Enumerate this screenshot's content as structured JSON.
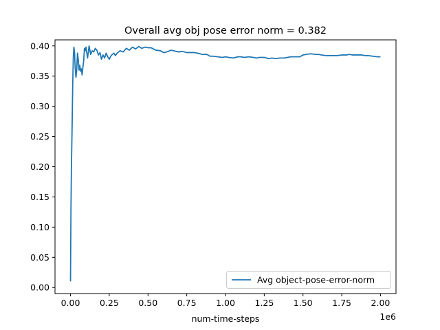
{
  "chart_data": {
    "type": "line",
    "title": "Overall avg obj pose error norm = 0.382",
    "xlabel": "num-time-steps",
    "ylabel": "",
    "x_offset_label": "1e6",
    "xlim": [
      -0.1,
      2.1
    ],
    "ylim": [
      -0.01,
      0.41
    ],
    "x_ticks": [
      0.0,
      0.25,
      0.5,
      0.75,
      1.0,
      1.25,
      1.5,
      1.75,
      2.0
    ],
    "x_tick_labels": [
      "0.00",
      "0.25",
      "0.50",
      "0.75",
      "1.00",
      "1.25",
      "1.50",
      "1.75",
      "2.00"
    ],
    "y_ticks": [
      0.0,
      0.05,
      0.1,
      0.15,
      0.2,
      0.25,
      0.3,
      0.35,
      0.4
    ],
    "y_tick_labels": [
      "0.00",
      "0.05",
      "0.10",
      "0.15",
      "0.20",
      "0.25",
      "0.30",
      "0.35",
      "0.40"
    ],
    "grid": false,
    "legend_position": "lower-right",
    "series": [
      {
        "name": "Avg object-pose-error-norm",
        "color": "#1f77b4",
        "x": [
          0.0,
          0.003,
          0.006,
          0.01,
          0.014,
          0.018,
          0.022,
          0.026,
          0.03,
          0.035,
          0.04,
          0.045,
          0.05,
          0.055,
          0.06,
          0.065,
          0.07,
          0.075,
          0.08,
          0.085,
          0.09,
          0.095,
          0.1,
          0.105,
          0.11,
          0.12,
          0.13,
          0.14,
          0.15,
          0.16,
          0.17,
          0.18,
          0.19,
          0.2,
          0.21,
          0.22,
          0.23,
          0.24,
          0.25,
          0.26,
          0.27,
          0.28,
          0.29,
          0.3,
          0.32,
          0.34,
          0.36,
          0.38,
          0.4,
          0.42,
          0.44,
          0.46,
          0.48,
          0.5,
          0.52,
          0.55,
          0.58,
          0.6,
          0.62,
          0.65,
          0.68,
          0.7,
          0.72,
          0.75,
          0.78,
          0.8,
          0.82,
          0.85,
          0.88,
          0.9,
          0.92,
          0.95,
          0.98,
          1.0,
          1.02,
          1.05,
          1.08,
          1.1,
          1.12,
          1.15,
          1.18,
          1.2,
          1.22,
          1.25,
          1.28,
          1.3,
          1.32,
          1.35,
          1.38,
          1.4,
          1.42,
          1.45,
          1.48,
          1.5,
          1.52,
          1.55,
          1.58,
          1.6,
          1.62,
          1.65,
          1.68,
          1.7,
          1.72,
          1.75,
          1.78,
          1.8,
          1.82,
          1.85,
          1.88,
          1.9,
          1.92,
          1.95,
          1.98,
          2.0
        ],
        "y": [
          0.01,
          0.13,
          0.2,
          0.26,
          0.33,
          0.38,
          0.398,
          0.39,
          0.365,
          0.348,
          0.36,
          0.388,
          0.378,
          0.36,
          0.368,
          0.358,
          0.362,
          0.352,
          0.365,
          0.375,
          0.396,
          0.392,
          0.398,
          0.389,
          0.38,
          0.4,
          0.386,
          0.392,
          0.39,
          0.396,
          0.393,
          0.385,
          0.389,
          0.378,
          0.385,
          0.38,
          0.388,
          0.382,
          0.378,
          0.383,
          0.386,
          0.388,
          0.384,
          0.388,
          0.392,
          0.39,
          0.396,
          0.393,
          0.398,
          0.395,
          0.399,
          0.396,
          0.398,
          0.397,
          0.397,
          0.393,
          0.392,
          0.389,
          0.39,
          0.393,
          0.391,
          0.39,
          0.391,
          0.389,
          0.389,
          0.389,
          0.388,
          0.386,
          0.386,
          0.383,
          0.383,
          0.382,
          0.381,
          0.382,
          0.381,
          0.38,
          0.382,
          0.382,
          0.381,
          0.382,
          0.381,
          0.38,
          0.381,
          0.381,
          0.379,
          0.38,
          0.379,
          0.38,
          0.38,
          0.381,
          0.382,
          0.382,
          0.382,
          0.385,
          0.386,
          0.387,
          0.386,
          0.386,
          0.385,
          0.384,
          0.384,
          0.384,
          0.384,
          0.385,
          0.385,
          0.386,
          0.385,
          0.385,
          0.385,
          0.384,
          0.384,
          0.383,
          0.382,
          0.382
        ]
      }
    ]
  }
}
